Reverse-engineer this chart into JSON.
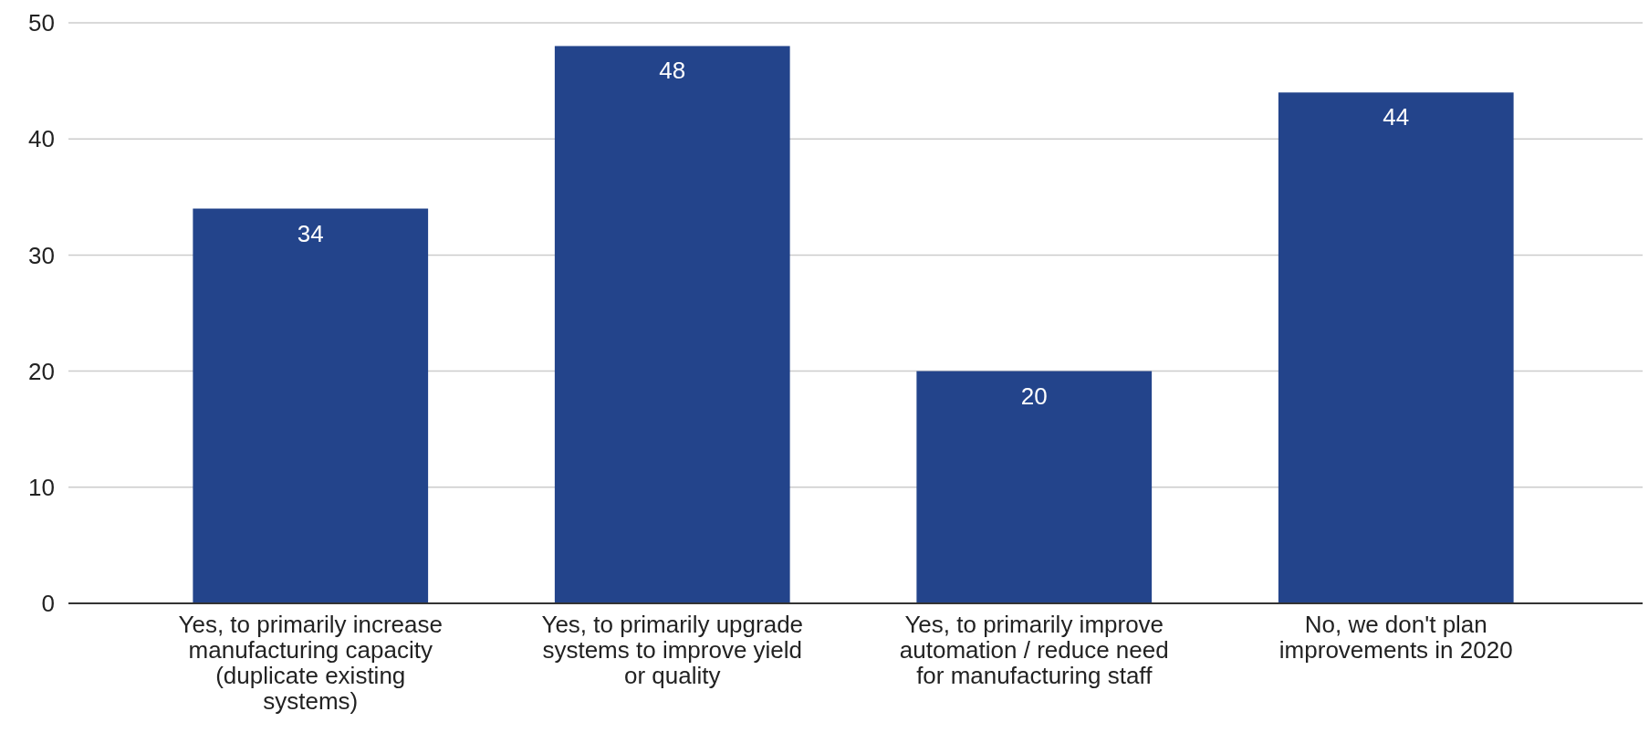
{
  "chart_data": {
    "type": "bar",
    "categories": [
      "Yes, to primarily increase manufacturing capacity (duplicate existing systems)",
      "Yes, to primarily upgrade systems to improve yield or quality",
      "Yes, to primarily improve automation / reduce need for manufacturing staff",
      "No, we don't plan improvements in 2020"
    ],
    "values": [
      34,
      48,
      20,
      44
    ],
    "color": "#23448b",
    "data_labels": true,
    "ylim": [
      0,
      50
    ],
    "yticks": [
      0,
      10,
      20,
      30,
      40,
      50
    ],
    "grid": "y"
  }
}
